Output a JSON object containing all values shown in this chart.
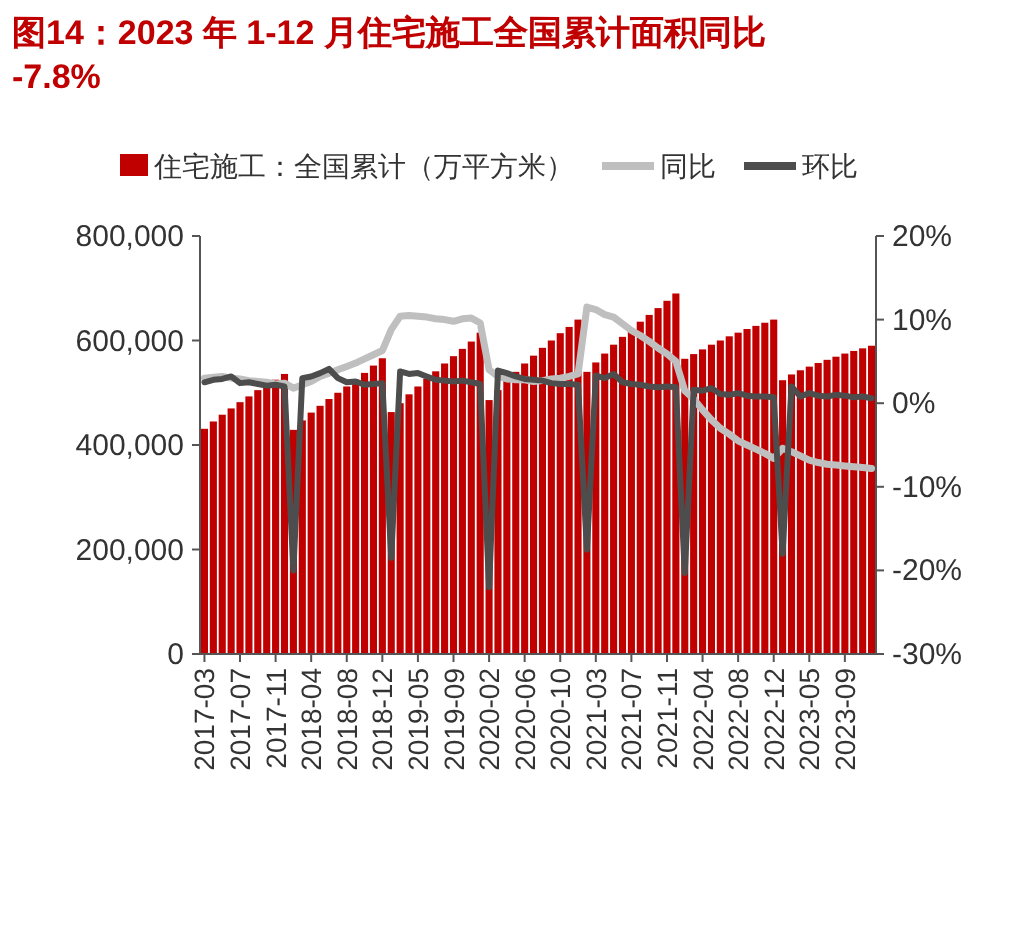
{
  "chart_data": {
    "type": "bar",
    "title": "图14：2023 年 1-12 月住宅施工全国累计面积同比-7.8%",
    "categories": [
      "2017-03",
      null,
      null,
      null,
      "2017-07",
      null,
      null,
      null,
      "2017-11",
      null,
      null,
      null,
      "2018-04",
      null,
      null,
      null,
      "2018-08",
      null,
      null,
      null,
      "2018-12",
      null,
      null,
      null,
      "2019-05",
      null,
      null,
      null,
      "2019-09",
      null,
      null,
      null,
      "2020-02",
      null,
      null,
      null,
      "2020-06",
      null,
      null,
      null,
      "2020-10",
      null,
      null,
      null,
      "2021-03",
      null,
      null,
      null,
      "2021-07",
      null,
      null,
      null,
      "2021-11",
      null,
      null,
      null,
      "2022-04",
      null,
      null,
      null,
      "2022-08",
      null,
      null,
      null,
      "2022-12",
      null,
      null,
      null,
      "2023-05",
      null,
      null,
      null,
      "2023-09",
      null,
      null,
      null
    ],
    "series": [
      {
        "name": "住宅施工：全国累计（万平方米）",
        "color": "#c00000",
        "values": [
          431000,
          445000,
          458000,
          470000,
          482000,
          493000,
          505000,
          515000,
          525000,
          536000,
          429000,
          447000,
          462000,
          475000,
          488000,
          500000,
          512000,
          525000,
          538000,
          552000,
          566000,
          463000,
          480000,
          497000,
          512000,
          527000,
          541000,
          556000,
          570000,
          584000,
          598000,
          615000,
          486000,
          505000,
          523000,
          540000,
          556000,
          571000,
          586000,
          600000,
          614000,
          626000,
          640000,
          540000,
          558000,
          575000,
          592000,
          607000,
          622000,
          636000,
          649000,
          662000,
          676000,
          690000,
          565000,
          574000,
          583000,
          592000,
          600000,
          608000,
          615000,
          622000,
          628000,
          634000,
          640000,
          524000,
          535000,
          543000,
          550000,
          557000,
          563000,
          569000,
          575000,
          580000,
          585000,
          590000
        ]
      },
      {
        "name": "同比",
        "type": "line",
        "axis": "y2",
        "color": "#bfbfbf",
        "values": [
          3.0,
          3.1,
          3.2,
          3.0,
          2.9,
          2.7,
          2.6,
          2.5,
          2.3,
          2.4,
          1.8,
          2.2,
          2.6,
          3.2,
          3.6,
          4.0,
          4.4,
          4.8,
          5.3,
          5.8,
          6.3,
          8.8,
          10.4,
          10.5,
          10.4,
          10.3,
          10.1,
          10.0,
          9.8,
          10.1,
          10.2,
          9.6,
          4.0,
          3.2,
          2.9,
          2.8,
          2.8,
          2.6,
          2.7,
          2.9,
          3.0,
          3.2,
          3.5,
          11.5,
          11.2,
          10.6,
          10.3,
          9.5,
          8.7,
          8.1,
          7.4,
          6.6,
          5.9,
          5.0,
          1.5,
          0.5,
          -0.8,
          -2.0,
          -3.0,
          -3.7,
          -4.5,
          -5.0,
          -5.5,
          -6.0,
          -6.6,
          -5.4,
          -5.8,
          -6.3,
          -6.8,
          -7.1,
          -7.3,
          -7.4,
          -7.5,
          -7.6,
          -7.7,
          -7.8
        ]
      },
      {
        "name": "环比",
        "type": "line",
        "axis": "y2",
        "color": "#4d4d4d",
        "values": [
          2.5,
          2.8,
          2.9,
          3.2,
          2.4,
          2.5,
          2.3,
          2.1,
          2.2,
          2.0,
          -20.0,
          3.0,
          3.2,
          3.6,
          4.1,
          3.0,
          2.5,
          2.6,
          2.2,
          2.3,
          2.4,
          -18.5,
          3.8,
          3.5,
          3.6,
          3.2,
          2.8,
          2.7,
          2.6,
          2.7,
          2.5,
          2.3,
          -22.0,
          3.9,
          3.6,
          3.2,
          2.9,
          2.8,
          2.7,
          2.4,
          2.3,
          2.3,
          2.2,
          -17.5,
          3.3,
          3.0,
          3.5,
          2.5,
          2.3,
          2.2,
          2.0,
          1.9,
          2.0,
          1.9,
          -20.3,
          1.6,
          1.5,
          1.8,
          1.1,
          1.0,
          1.2,
          0.9,
          0.8,
          0.8,
          0.7,
          -18.0,
          2.0,
          0.8,
          1.2,
          0.9,
          0.8,
          1.0,
          0.9,
          0.7,
          0.8,
          0.6
        ]
      }
    ],
    "ylim": [
      0,
      800000
    ],
    "yticks": [
      {
        "value": 0,
        "label": "0"
      },
      {
        "value": 200000,
        "label": "200,000"
      },
      {
        "value": 400000,
        "label": "400,000"
      },
      {
        "value": 600000,
        "label": "600,000"
      },
      {
        "value": 800000,
        "label": "800,000"
      }
    ],
    "y2lim": [
      -30,
      20
    ],
    "y2ticks": [
      {
        "value": -30,
        "label": "-30%"
      },
      {
        "value": -20,
        "label": "-20%"
      },
      {
        "value": -10,
        "label": "-10%"
      },
      {
        "value": 0,
        "label": "0%"
      },
      {
        "value": 10,
        "label": "10%"
      },
      {
        "value": 20,
        "label": "20%"
      }
    ],
    "legend": "top",
    "grid": false,
    "marker": "none",
    "line_style": "solid"
  }
}
